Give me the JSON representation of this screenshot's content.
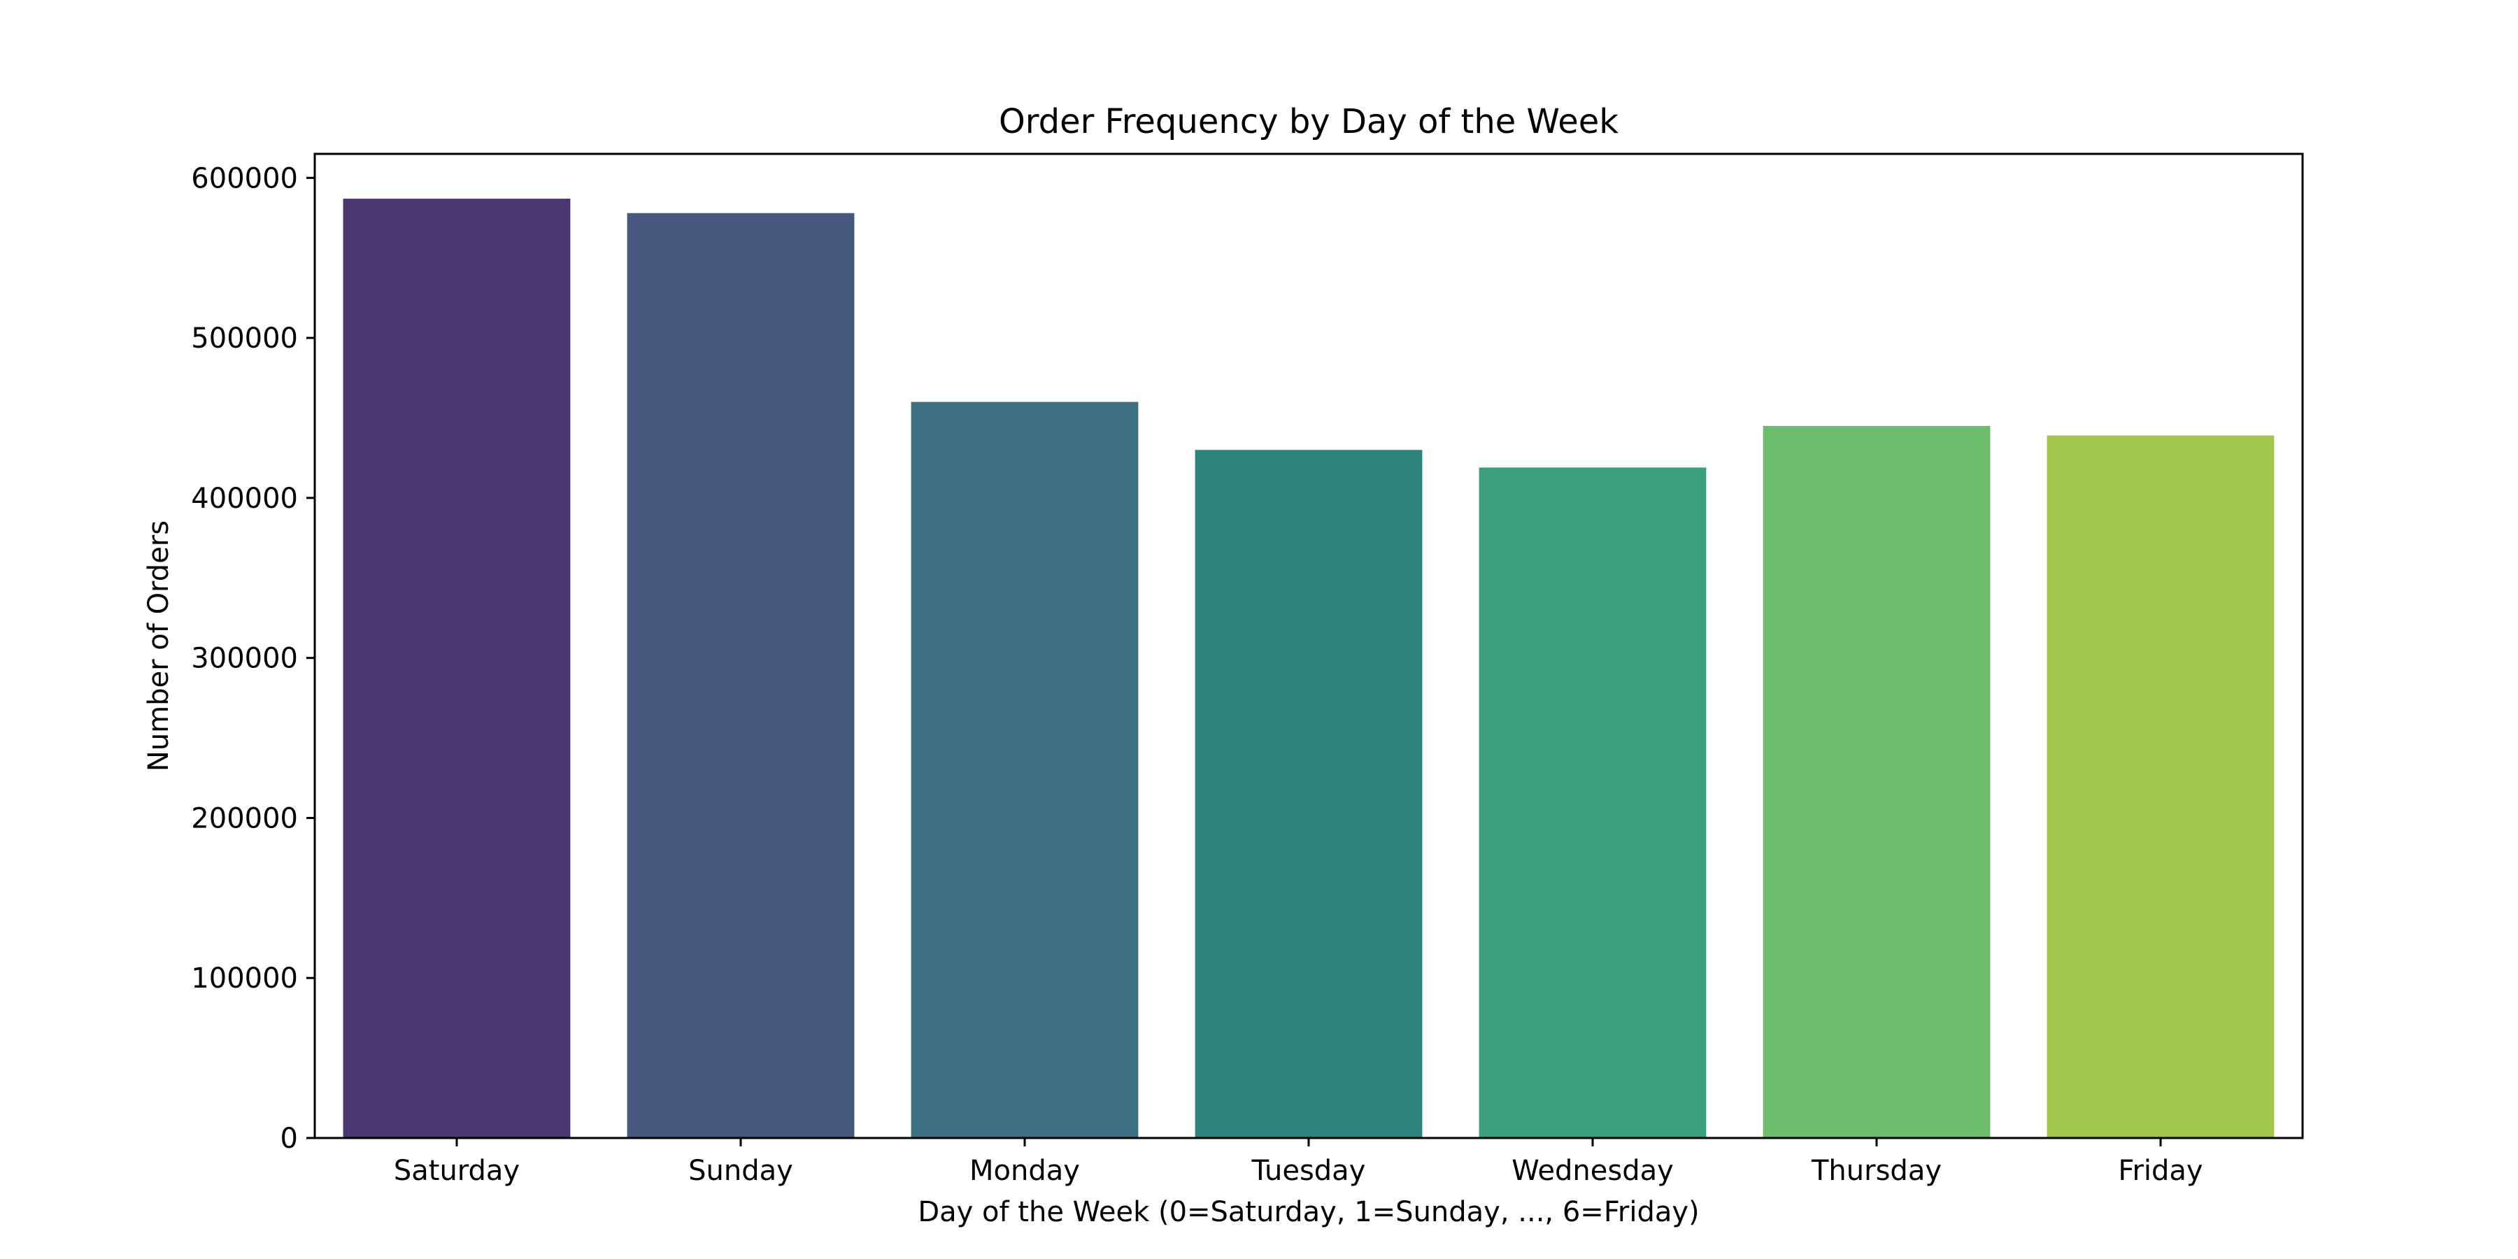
{
  "chart_data": {
    "type": "bar",
    "title": "Order Frequency by Day of the Week",
    "xlabel": "Day of the Week (0=Saturday, 1=Sunday, ..., 6=Friday)",
    "ylabel": "Number of Orders",
    "categories": [
      "Saturday",
      "Sunday",
      "Monday",
      "Tuesday",
      "Wednesday",
      "Thursday",
      "Friday"
    ],
    "values": [
      587000,
      578000,
      460000,
      430000,
      419000,
      445000,
      439000
    ],
    "colors": [
      "#4a3670",
      "#47587e",
      "#3c6e81",
      "#2e837c",
      "#3b9f7c",
      "#6cbd6c",
      "#a2c64a"
    ],
    "ylim": [
      0,
      615000
    ],
    "yticks": [
      0,
      100000,
      200000,
      300000,
      400000,
      500000,
      600000
    ],
    "ytick_labels": [
      "0",
      "100000",
      "200000",
      "300000",
      "400000",
      "500000",
      "600000"
    ],
    "grid": false,
    "legend": "none"
  }
}
